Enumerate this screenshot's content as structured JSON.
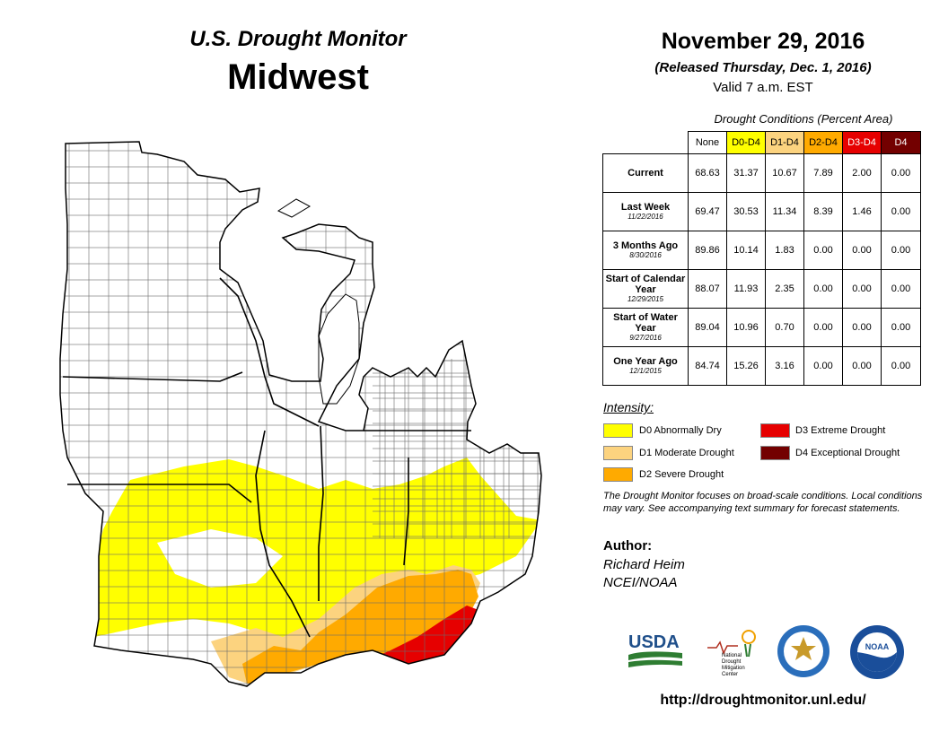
{
  "header": {
    "subtitle": "U.S. Drought Monitor",
    "region": "Midwest",
    "date": "November 29, 2016",
    "released": "(Released Thursday, Dec. 1, 2016)",
    "valid": "Valid  7 a.m. EST"
  },
  "table": {
    "caption": "Drought Conditions (Percent Area)",
    "columns": [
      "None",
      "D0-D4",
      "D1-D4",
      "D2-D4",
      "D3-D4",
      "D4"
    ],
    "column_colors": [
      "#ffffff",
      "#ffff00",
      "#fcd37f",
      "#ffaa00",
      "#e60000",
      "#730000"
    ],
    "rows": [
      {
        "label": "Current",
        "sub": "",
        "values": [
          "68.63",
          "31.37",
          "10.67",
          "7.89",
          "2.00",
          "0.00"
        ]
      },
      {
        "label": "Last Week",
        "sub": "11/22/2016",
        "values": [
          "69.47",
          "30.53",
          "11.34",
          "8.39",
          "1.46",
          "0.00"
        ]
      },
      {
        "label": "3 Months Ago",
        "sub": "8/30/2016",
        "values": [
          "89.86",
          "10.14",
          "1.83",
          "0.00",
          "0.00",
          "0.00"
        ]
      },
      {
        "label": "Start of Calendar Year",
        "sub": "12/29/2015",
        "values": [
          "88.07",
          "11.93",
          "2.35",
          "0.00",
          "0.00",
          "0.00"
        ]
      },
      {
        "label": "Start of Water Year",
        "sub": "9/27/2016",
        "values": [
          "89.04",
          "10.96",
          "0.70",
          "0.00",
          "0.00",
          "0.00"
        ]
      },
      {
        "label": "One Year Ago",
        "sub": "12/1/2015",
        "values": [
          "84.74",
          "15.26",
          "3.16",
          "0.00",
          "0.00",
          "0.00"
        ]
      }
    ]
  },
  "legend": {
    "title": "Intensity:",
    "items": [
      {
        "label": "D0 Abnormally Dry",
        "color": "#ffff00"
      },
      {
        "label": "D1 Moderate Drought",
        "color": "#fcd37f"
      },
      {
        "label": "D2 Severe Drought",
        "color": "#ffaa00"
      },
      {
        "label": "D3 Extreme Drought",
        "color": "#e60000"
      },
      {
        "label": "D4 Exceptional Drought",
        "color": "#730000"
      }
    ]
  },
  "note": "The Drought Monitor focuses on broad-scale conditions. Local conditions may vary. See accompanying text summary for forecast statements.",
  "author": {
    "label": "Author:",
    "name": "Richard Heim",
    "org": "NCEI/NOAA"
  },
  "logos": {
    "usda": "USDA",
    "ndmc": "National Drought Mitigation Center",
    "noaa": "NOAA"
  },
  "url": "http://droughtmonitor.unl.edu/"
}
